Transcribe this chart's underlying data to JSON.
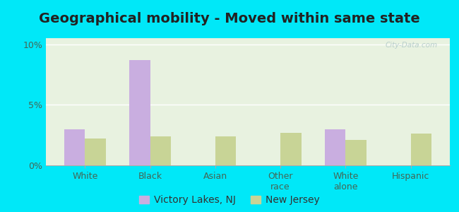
{
  "title": "Geographical mobility - Moved within same state",
  "categories": [
    "White",
    "Black",
    "Asian",
    "Other\nrace",
    "White\nalone",
    "Hispanic"
  ],
  "victory_lakes": [
    3.0,
    8.7,
    0.0,
    0.0,
    3.0,
    0.0
  ],
  "new_jersey": [
    2.2,
    2.4,
    2.4,
    2.7,
    2.1,
    2.6
  ],
  "bar_color_vl": "#c9aee0",
  "bar_color_nj": "#c8d496",
  "background_outer": "#00e8f8",
  "background_plot": "#e8f2e0",
  "ylim": [
    0,
    10.5
  ],
  "yticks": [
    0,
    5,
    10
  ],
  "ytick_labels": [
    "0%",
    "5%",
    "10%"
  ],
  "bar_width": 0.32,
  "legend_labels": [
    "Victory Lakes, NJ",
    "New Jersey"
  ],
  "title_fontsize": 14,
  "tick_fontsize": 9,
  "legend_fontsize": 10
}
